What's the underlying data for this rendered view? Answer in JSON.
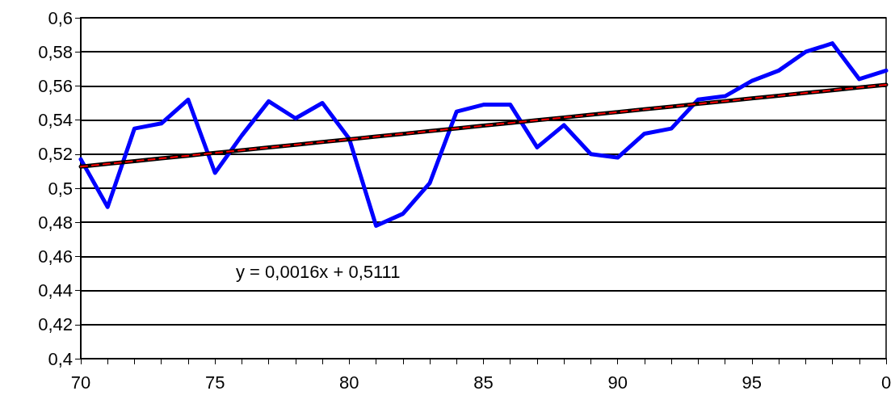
{
  "chart_data": {
    "type": "line",
    "categories": [
      "70",
      null,
      null,
      null,
      null,
      "75",
      null,
      null,
      null,
      null,
      "80",
      null,
      null,
      null,
      null,
      "85",
      null,
      null,
      null,
      null,
      "90",
      null,
      null,
      null,
      null,
      "95",
      null,
      null,
      null,
      null,
      "0"
    ],
    "series": [
      {
        "color": "#0000ff",
        "line_style": "solid",
        "values": [
          0.517,
          0.489,
          0.535,
          0.538,
          0.552,
          0.509,
          0.531,
          0.551,
          0.541,
          0.55,
          0.529,
          0.478,
          0.485,
          0.503,
          0.545,
          0.549,
          0.549,
          0.524,
          0.537,
          0.52,
          0.518,
          0.532,
          0.535,
          0.552,
          0.554,
          0.563,
          0.569,
          0.58,
          0.585,
          0.564,
          0.569
        ]
      },
      {
        "color": "#000000",
        "line_style": "solid",
        "values": [
          0.5127,
          0.5143,
          0.5159,
          0.5175,
          0.5191,
          0.5207,
          0.5223,
          0.5239,
          0.5255,
          0.5271,
          0.5287,
          0.5303,
          0.5319,
          0.5335,
          0.5351,
          0.5367,
          0.5383,
          0.5399,
          0.5415,
          0.5431,
          0.5447,
          0.5463,
          0.5479,
          0.5495,
          0.5511,
          0.5527,
          0.5543,
          0.5559,
          0.5575,
          0.5591,
          0.5607
        ]
      },
      {
        "color": "#ff0000",
        "line_style": "dashed",
        "values": [
          0.5127,
          0.5143,
          0.5159,
          0.5175,
          0.5191,
          0.5207,
          0.5223,
          0.5239,
          0.5255,
          0.5271,
          0.5287,
          0.5303,
          0.5319,
          0.5335,
          0.5351,
          0.5367,
          0.5383,
          0.5399,
          0.5415,
          0.5431,
          0.5447,
          0.5463,
          0.5479,
          0.5495,
          0.5511,
          0.5527,
          0.5543,
          0.5559,
          0.5575,
          0.5591,
          0.5607
        ]
      }
    ],
    "ylim": [
      0.4,
      0.6
    ],
    "yticks": [
      {
        "value": 0.4,
        "label": "0,4"
      },
      {
        "value": 0.42,
        "label": "0,42"
      },
      {
        "value": 0.44,
        "label": "0,44"
      },
      {
        "value": 0.46,
        "label": "0,46"
      },
      {
        "value": 0.48,
        "label": "0,48"
      },
      {
        "value": 0.5,
        "label": "0,5"
      },
      {
        "value": 0.52,
        "label": "0,52"
      },
      {
        "value": 0.54,
        "label": "0,54"
      },
      {
        "value": 0.56,
        "label": "0,56"
      },
      {
        "value": 0.58,
        "label": "0,58"
      },
      {
        "value": 0.6,
        "label": "0,6"
      }
    ],
    "annotations": [
      "y = 0,0016x + 0,5111"
    ],
    "grid": "y",
    "marker": "none"
  }
}
